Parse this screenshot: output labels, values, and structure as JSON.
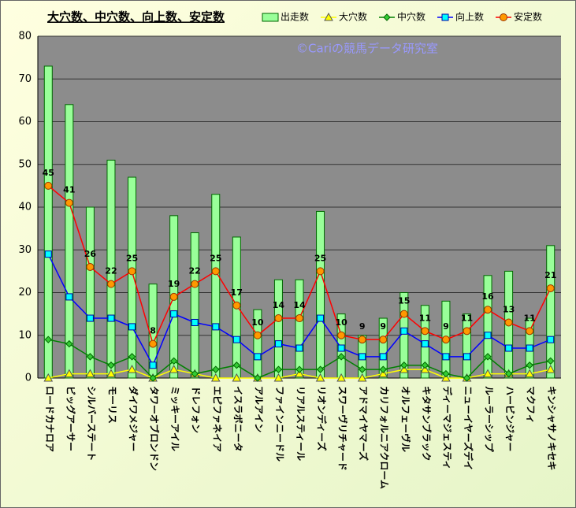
{
  "chart_data": {
    "type": "bar-line",
    "title": "大穴数、中穴数、向上数、安定数",
    "watermark": "©Cariの競馬データ研究室",
    "categories": [
      "ロードカナロア",
      "ビッグアーサー",
      "シルバーステート",
      "モーリス",
      "ダイワメジャー",
      "タワーオブロンドン",
      "ミッキーアイル",
      "ドレフォン",
      "エピファネイア",
      "イスラボニータ",
      "アルアイン",
      "ファインニードル",
      "リアルスティール",
      "リオンディーズ",
      "スワーヴリチャード",
      "アドマイヤマーズ",
      "カリフォルニアクローム",
      "オルフェーヴル",
      "キタサンブラック",
      "ディーマジェスティ",
      "ニューイヤーズデイ",
      "ルーラーシップ",
      "ハービンジャー",
      "マクフィ",
      "キンシャサノキセキ"
    ],
    "series": [
      {
        "name": "出走数",
        "kind": "bar",
        "color": "#99ff99",
        "values": [
          73,
          64,
          40,
          51,
          47,
          22,
          38,
          34,
          43,
          33,
          16,
          23,
          23,
          39,
          15,
          10,
          14,
          20,
          17,
          18,
          15,
          24,
          25,
          14,
          31
        ]
      },
      {
        "name": "大穴数",
        "kind": "line",
        "marker": "triangle",
        "color": "#ffff00",
        "marker_color": "#ffff00",
        "values": [
          0,
          1,
          1,
          1,
          2,
          0,
          2,
          1,
          0,
          0,
          0,
          0,
          1,
          0,
          0,
          0,
          1,
          2,
          2,
          0,
          0,
          1,
          1,
          1,
          2
        ]
      },
      {
        "name": "中穴数",
        "kind": "line",
        "marker": "diamond",
        "color": "#008000",
        "marker_color": "#33cc33",
        "values": [
          9,
          8,
          5,
          3,
          5,
          0,
          4,
          1,
          2,
          3,
          0,
          2,
          2,
          2,
          5,
          2,
          2,
          3,
          3,
          1,
          0,
          5,
          1,
          3,
          4
        ]
      },
      {
        "name": "向上数",
        "kind": "line",
        "marker": "square",
        "color": "#0000ff",
        "marker_color": "#00ffff",
        "values": [
          29,
          19,
          14,
          14,
          12,
          3,
          15,
          13,
          12,
          9,
          5,
          8,
          7,
          14,
          7,
          5,
          5,
          11,
          8,
          5,
          5,
          10,
          7,
          7,
          9
        ]
      },
      {
        "name": "安定数",
        "kind": "line",
        "marker": "circle",
        "color": "#ff0000",
        "marker_color": "#ff9900",
        "data_labels": true,
        "values": [
          45,
          41,
          26,
          22,
          25,
          8,
          19,
          22,
          25,
          17,
          10,
          14,
          14,
          25,
          10,
          9,
          9,
          15,
          11,
          9,
          11,
          16,
          13,
          11,
          21
        ]
      }
    ],
    "ylim": [
      0,
      80
    ],
    "yticks": [
      0,
      10,
      20,
      30,
      40,
      50,
      60,
      70,
      80
    ],
    "grid": true,
    "legend": "top-right"
  }
}
